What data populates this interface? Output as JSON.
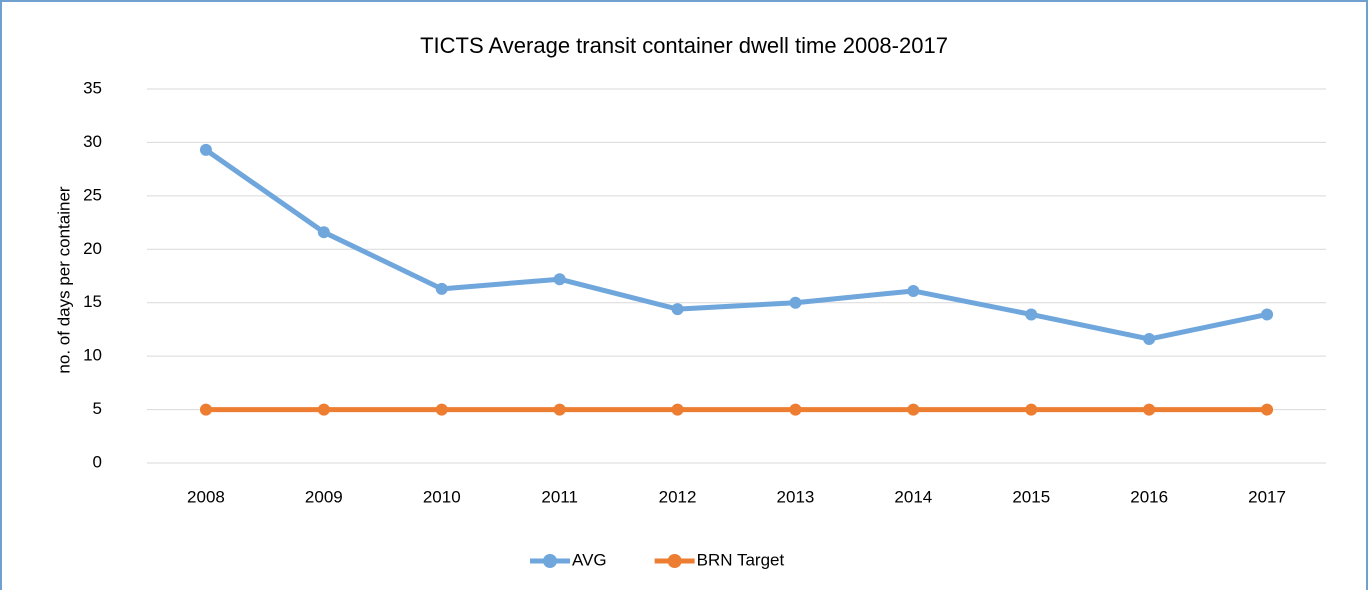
{
  "chart_data": {
    "type": "line",
    "title": "TICTS Average transit container dwell time 2008-2017",
    "y_label": "no. of days per container",
    "categories": [
      "2008",
      "2009",
      "2010",
      "2011",
      "2012",
      "2013",
      "2014",
      "2015",
      "2016",
      "2017"
    ],
    "series": [
      {
        "name": "AVG",
        "color": "#6fa6dc",
        "values": [
          29.3,
          21.6,
          16.3,
          17.2,
          14.4,
          15.0,
          16.1,
          13.9,
          11.6,
          13.9
        ]
      },
      {
        "name": "BRN Target",
        "color": "#ed7d31",
        "values": [
          5,
          5,
          5,
          5,
          5,
          5,
          5,
          5,
          5,
          5
        ]
      }
    ],
    "ylim": [
      0,
      35
    ],
    "yticks": [
      0,
      5,
      10,
      15,
      20,
      25,
      30,
      35
    ],
    "grid": true,
    "legend": "bottom"
  }
}
